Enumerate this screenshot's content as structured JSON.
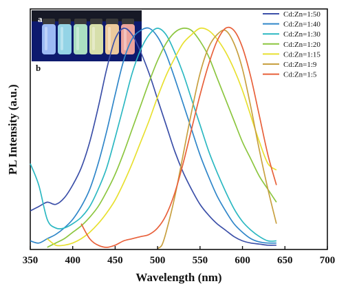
{
  "chart_data": {
    "type": "line",
    "xlabel": "Wavelength (nm)",
    "ylabel": "PL Intensity (a.u.)",
    "xlim": [
      350,
      700
    ],
    "ylim": [
      0,
      1.12
    ],
    "xticks": [
      350,
      400,
      450,
      500,
      550,
      600,
      650,
      700
    ],
    "yticks_shown": false,
    "grid": false,
    "legend_position": "top-right",
    "panel_labels": [
      "a",
      "b"
    ],
    "inset": {
      "label": "a",
      "position": "top-left",
      "vial_colors": [
        "#a8c8ff",
        "#9fe4f0",
        "#b8f0c8",
        "#e8f0b0",
        "#ffd8a0",
        "#ffb0a0"
      ]
    },
    "series": [
      {
        "name": "Cd:Zn=1:50",
        "color": "#3b4fa8",
        "x": [
          350,
          360,
          370,
          380,
          390,
          400,
          410,
          420,
          430,
          440,
          450,
          460,
          470,
          480,
          490,
          500,
          510,
          520,
          530,
          540,
          550,
          560,
          570,
          580,
          590,
          600,
          610,
          620,
          630,
          640
        ],
        "y": [
          0.18,
          0.2,
          0.22,
          0.21,
          0.24,
          0.3,
          0.38,
          0.5,
          0.66,
          0.84,
          0.98,
          1.03,
          1.0,
          0.92,
          0.82,
          0.7,
          0.58,
          0.46,
          0.36,
          0.28,
          0.21,
          0.16,
          0.12,
          0.09,
          0.06,
          0.04,
          0.03,
          0.025,
          0.02,
          0.02
        ]
      },
      {
        "name": "Cd:Zn=1:40",
        "color": "#2f86c9",
        "x": [
          350,
          360,
          370,
          380,
          390,
          400,
          410,
          420,
          430,
          440,
          450,
          460,
          470,
          480,
          490,
          500,
          510,
          520,
          530,
          540,
          550,
          560,
          570,
          580,
          590,
          600,
          610,
          620,
          630,
          640
        ],
        "y": [
          0.04,
          0.03,
          0.05,
          0.07,
          0.1,
          0.14,
          0.2,
          0.28,
          0.4,
          0.55,
          0.72,
          0.88,
          0.98,
          1.02,
          1.03,
          0.99,
          0.91,
          0.8,
          0.68,
          0.56,
          0.44,
          0.34,
          0.25,
          0.18,
          0.12,
          0.08,
          0.05,
          0.035,
          0.03,
          0.03
        ]
      },
      {
        "name": "Cd:Zn=1:30",
        "color": "#2cb8c2",
        "x": [
          350,
          360,
          370,
          380,
          390,
          400,
          410,
          420,
          430,
          440,
          450,
          460,
          470,
          480,
          490,
          500,
          510,
          520,
          530,
          540,
          550,
          560,
          570,
          580,
          590,
          600,
          610,
          620,
          630,
          640
        ],
        "y": [
          0.4,
          0.3,
          0.14,
          0.1,
          0.1,
          0.12,
          0.15,
          0.2,
          0.28,
          0.38,
          0.52,
          0.67,
          0.82,
          0.93,
          1.0,
          1.03,
          1.0,
          0.92,
          0.82,
          0.7,
          0.58,
          0.46,
          0.36,
          0.27,
          0.19,
          0.13,
          0.09,
          0.06,
          0.04,
          0.04
        ]
      },
      {
        "name": "Cd:Zn=1:20",
        "color": "#8cc63f",
        "x": [
          370,
          380,
          390,
          400,
          410,
          420,
          430,
          440,
          450,
          460,
          470,
          480,
          490,
          500,
          510,
          520,
          530,
          540,
          550,
          560,
          570,
          580,
          590,
          600,
          610,
          620,
          630,
          640
        ],
        "y": [
          0.01,
          0.03,
          0.05,
          0.08,
          0.11,
          0.15,
          0.2,
          0.27,
          0.35,
          0.45,
          0.56,
          0.67,
          0.78,
          0.88,
          0.96,
          1.01,
          1.03,
          1.02,
          0.97,
          0.9,
          0.8,
          0.7,
          0.6,
          0.5,
          0.42,
          0.34,
          0.28,
          0.22
        ]
      },
      {
        "name": "Cd:Zn=1:15",
        "color": "#e8e030",
        "x": [
          370,
          380,
          390,
          400,
          410,
          420,
          430,
          440,
          450,
          460,
          470,
          480,
          490,
          500,
          510,
          520,
          530,
          540,
          550,
          560,
          570,
          580,
          590,
          600,
          610,
          620,
          630,
          640
        ],
        "y": [
          0.05,
          0.02,
          0.02,
          0.03,
          0.05,
          0.08,
          0.12,
          0.17,
          0.23,
          0.31,
          0.4,
          0.5,
          0.6,
          0.71,
          0.81,
          0.89,
          0.96,
          1.0,
          1.03,
          1.02,
          0.98,
          0.92,
          0.84,
          0.74,
          0.62,
          0.5,
          0.4,
          0.37
        ]
      },
      {
        "name": "Cd:Zn=1:9",
        "color": "#c8a040",
        "x": [
          500,
          505,
          510,
          520,
          530,
          540,
          550,
          560,
          570,
          580,
          590,
          600,
          610,
          620,
          630,
          640
        ],
        "y": [
          0.005,
          0.02,
          0.08,
          0.24,
          0.44,
          0.64,
          0.82,
          0.94,
          1.0,
          1.02,
          0.96,
          0.84,
          0.66,
          0.46,
          0.28,
          0.12
        ]
      },
      {
        "name": "Cd:Zn=1:5",
        "color": "#e8603a",
        "x": [
          410,
          420,
          430,
          440,
          450,
          460,
          470,
          480,
          490,
          500,
          510,
          520,
          530,
          540,
          550,
          560,
          570,
          580,
          590,
          600,
          610,
          620,
          630,
          640
        ],
        "y": [
          0.12,
          0.05,
          0.02,
          0.01,
          0.02,
          0.04,
          0.05,
          0.06,
          0.07,
          0.1,
          0.16,
          0.26,
          0.4,
          0.56,
          0.72,
          0.86,
          0.97,
          1.03,
          1.02,
          0.94,
          0.8,
          0.62,
          0.44,
          0.3
        ]
      }
    ]
  }
}
